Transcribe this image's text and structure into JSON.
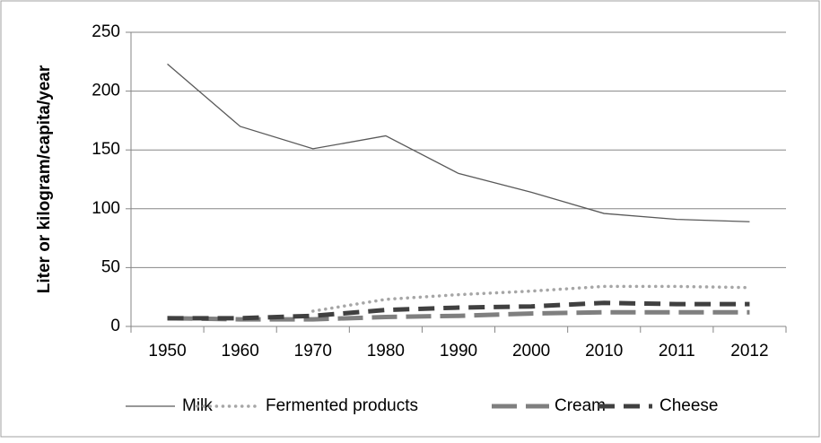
{
  "chart_data": {
    "type": "line",
    "y_label": "Liter or kilogram/capita/year",
    "categories": [
      "1950",
      "1960",
      "1970",
      "1980",
      "1990",
      "2000",
      "2010",
      "2011",
      "2012"
    ],
    "series": [
      {
        "name": "Milk",
        "color": "#595959",
        "values": [
          223,
          170,
          151,
          162,
          130,
          114,
          96,
          91,
          89
        ]
      },
      {
        "name": "Fermented products",
        "color": "#a6a6a6",
        "values": [
          null,
          null,
          13,
          23,
          27,
          30,
          34,
          34,
          33
        ]
      },
      {
        "name": "Cream",
        "color": "#7f7f7f",
        "values": [
          7,
          6,
          6,
          8,
          9,
          11,
          12,
          12,
          12
        ]
      },
      {
        "name": "Cheese",
        "color": "#404040",
        "values": [
          7,
          7,
          9,
          14,
          16,
          17,
          20,
          19,
          19
        ]
      }
    ],
    "ylim": [
      0,
      250
    ],
    "yticks": [
      0,
      50,
      100,
      150,
      200,
      250
    ],
    "grid": true,
    "legend": "bottom"
  }
}
